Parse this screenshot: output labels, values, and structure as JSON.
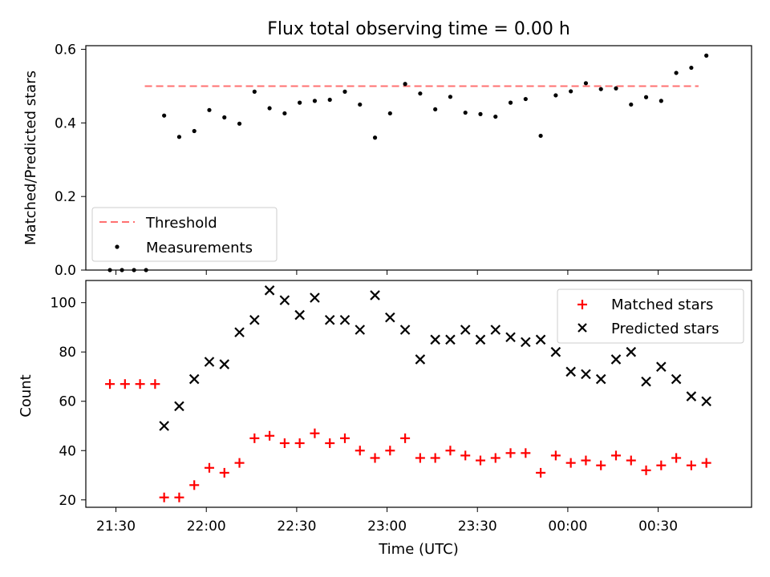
{
  "chart_data": [
    {
      "type": "scatter",
      "title": "Flux total observing time = 0.00 h",
      "xlabel": "",
      "ylabel": "Matched/Predicted stars",
      "ylim": [
        0,
        0.61
      ],
      "yticks": [
        0.0,
        0.2,
        0.4,
        0.6
      ],
      "ytick_labels": [
        "0.0",
        "0.2",
        "0.4",
        "0.6"
      ],
      "threshold": {
        "name": "Threshold",
        "value": 0.5,
        "x_range": [
          "21:30",
          "00:45"
        ],
        "color": "#ff7070"
      },
      "series": [
        {
          "name": "Measurements",
          "color": "#000000",
          "marker": "dot",
          "points": [
            [
              "21:28",
              0.0
            ],
            [
              "21:32",
              0.0
            ],
            [
              "21:36",
              0.0
            ],
            [
              "21:40",
              0.0
            ],
            [
              "21:46",
              0.42
            ],
            [
              "21:51",
              0.362
            ],
            [
              "21:56",
              0.378
            ],
            [
              "22:01",
              0.435
            ],
            [
              "22:06",
              0.415
            ],
            [
              "22:11",
              0.398
            ],
            [
              "22:16",
              0.485
            ],
            [
              "22:21",
              0.44
            ],
            [
              "22:26",
              0.426
            ],
            [
              "22:31",
              0.455
            ],
            [
              "22:36",
              0.46
            ],
            [
              "22:41",
              0.463
            ],
            [
              "22:46",
              0.485
            ],
            [
              "22:51",
              0.45
            ],
            [
              "22:56",
              0.36
            ],
            [
              "23:01",
              0.426
            ],
            [
              "23:06",
              0.506
            ],
            [
              "23:11",
              0.48
            ],
            [
              "23:16",
              0.437
            ],
            [
              "23:21",
              0.471
            ],
            [
              "23:26",
              0.428
            ],
            [
              "23:31",
              0.424
            ],
            [
              "23:36",
              0.417
            ],
            [
              "23:41",
              0.455
            ],
            [
              "23:46",
              0.465
            ],
            [
              "23:51",
              0.365
            ],
            [
              "23:56",
              0.475
            ],
            [
              "00:01",
              0.486
            ],
            [
              "00:06",
              0.508
            ],
            [
              "00:11",
              0.492
            ],
            [
              "00:16",
              0.494
            ],
            [
              "00:21",
              0.45
            ],
            [
              "00:26",
              0.47
            ],
            [
              "00:31",
              0.46
            ],
            [
              "00:36",
              0.536
            ],
            [
              "00:41",
              0.55
            ],
            [
              "00:46",
              0.583
            ]
          ]
        }
      ],
      "legend": "lower-left",
      "grid": false
    },
    {
      "type": "scatter",
      "title": "",
      "xlabel": "Time (UTC)",
      "ylabel": "Count",
      "ylim": [
        17,
        109
      ],
      "yticks": [
        20,
        40,
        60,
        80,
        100
      ],
      "ytick_labels": [
        "20",
        "40",
        "60",
        "80",
        "100"
      ],
      "x_domain": [
        "21:20",
        "01:01"
      ],
      "xticks": [
        "21:30",
        "22:00",
        "22:30",
        "23:00",
        "23:30",
        "00:00",
        "00:30"
      ],
      "series": [
        {
          "name": "Matched stars",
          "color": "#ff0000",
          "marker": "plus",
          "points": [
            [
              "21:28",
              67
            ],
            [
              "21:33",
              67
            ],
            [
              "21:38",
              67
            ],
            [
              "21:43",
              67
            ],
            [
              "21:46",
              21
            ],
            [
              "21:51",
              21
            ],
            [
              "21:56",
              26
            ],
            [
              "22:01",
              33
            ],
            [
              "22:06",
              31
            ],
            [
              "22:11",
              35
            ],
            [
              "22:16",
              45
            ],
            [
              "22:21",
              46
            ],
            [
              "22:26",
              43
            ],
            [
              "22:31",
              43
            ],
            [
              "22:36",
              47
            ],
            [
              "22:41",
              43
            ],
            [
              "22:46",
              45
            ],
            [
              "22:51",
              40
            ],
            [
              "22:56",
              37
            ],
            [
              "23:01",
              40
            ],
            [
              "23:06",
              45
            ],
            [
              "23:11",
              37
            ],
            [
              "23:16",
              37
            ],
            [
              "23:21",
              40
            ],
            [
              "23:26",
              38
            ],
            [
              "23:31",
              36
            ],
            [
              "23:36",
              37
            ],
            [
              "23:41",
              39
            ],
            [
              "23:46",
              39
            ],
            [
              "23:51",
              31
            ],
            [
              "23:56",
              38
            ],
            [
              "00:01",
              35
            ],
            [
              "00:06",
              36
            ],
            [
              "00:11",
              34
            ],
            [
              "00:16",
              38
            ],
            [
              "00:21",
              36
            ],
            [
              "00:26",
              32
            ],
            [
              "00:31",
              34
            ],
            [
              "00:36",
              37
            ],
            [
              "00:41",
              34
            ],
            [
              "00:46",
              35
            ]
          ]
        },
        {
          "name": "Predicted stars",
          "color": "#000000",
          "marker": "x",
          "points": [
            [
              "21:46",
              50
            ],
            [
              "21:51",
              58
            ],
            [
              "21:56",
              69
            ],
            [
              "22:01",
              76
            ],
            [
              "22:06",
              75
            ],
            [
              "22:11",
              88
            ],
            [
              "22:16",
              93
            ],
            [
              "22:21",
              105
            ],
            [
              "22:26",
              101
            ],
            [
              "22:31",
              95
            ],
            [
              "22:36",
              102
            ],
            [
              "22:41",
              93
            ],
            [
              "22:46",
              93
            ],
            [
              "22:51",
              89
            ],
            [
              "22:56",
              103
            ],
            [
              "23:01",
              94
            ],
            [
              "23:06",
              89
            ],
            [
              "23:11",
              77
            ],
            [
              "23:16",
              85
            ],
            [
              "23:21",
              85
            ],
            [
              "23:26",
              89
            ],
            [
              "23:31",
              85
            ],
            [
              "23:36",
              89
            ],
            [
              "23:41",
              86
            ],
            [
              "23:46",
              84
            ],
            [
              "23:51",
              85
            ],
            [
              "23:56",
              80
            ],
            [
              "00:01",
              72
            ],
            [
              "00:06",
              71
            ],
            [
              "00:11",
              69
            ],
            [
              "00:16",
              77
            ],
            [
              "00:21",
              80
            ],
            [
              "00:26",
              68
            ],
            [
              "00:31",
              74
            ],
            [
              "00:36",
              69
            ],
            [
              "00:41",
              62
            ],
            [
              "00:46",
              60
            ]
          ]
        }
      ],
      "legend": "top-right",
      "grid": false
    }
  ]
}
